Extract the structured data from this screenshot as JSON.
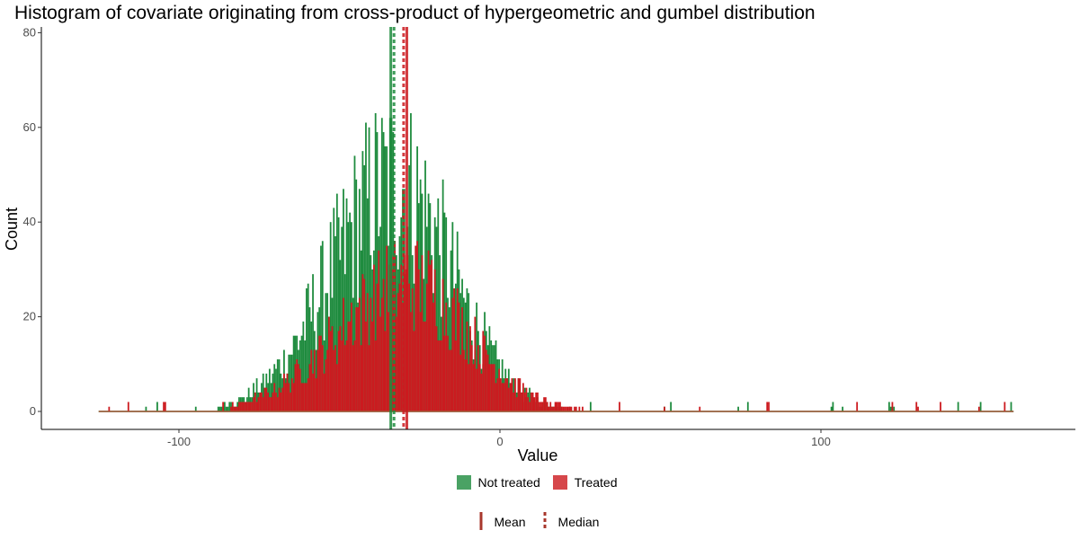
{
  "chart_data": {
    "type": "bar",
    "title": "Histogram of covariate originating from cross-product of hypergeometric and gumbel distribution",
    "xlabel": "Value",
    "ylabel": "Count",
    "xlim": [
      -125,
      160
    ],
    "ylim": [
      0,
      80
    ],
    "x_ticks": [
      -100,
      0,
      100
    ],
    "y_ticks": [
      0,
      20,
      40,
      60,
      80
    ],
    "grid": false,
    "legend_position": "bottom",
    "bin_width": 0.5,
    "series": [
      {
        "name": "Not treated",
        "color": "#1e8b3e",
        "mean": -34,
        "median": -33,
        "curve": {
          "peak": 48,
          "center": -33,
          "sigma_left": 20,
          "sigma_right": 18
        }
      },
      {
        "name": "Treated",
        "color": "#cc1a1f",
        "mean": -29,
        "median": -30,
        "curve": {
          "peak": 27,
          "center": -29,
          "sigma_left": 22,
          "sigma_right": 19
        }
      }
    ],
    "line_legend": [
      {
        "name": "Mean",
        "style": "solid"
      },
      {
        "name": "Median",
        "style": "dashed"
      }
    ],
    "line_legend_color": "#a8372c"
  }
}
